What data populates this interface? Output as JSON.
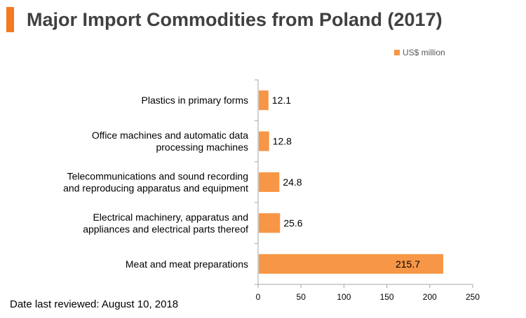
{
  "title": "Major Import Commodities from Poland (2017)",
  "footnote": "Date last reviewed: August 10, 2018",
  "colors": {
    "accent": "#f47920",
    "bar": "#f79646",
    "axis": "#a6a6a6"
  },
  "chart_data": {
    "type": "bar",
    "orientation": "horizontal",
    "categories": [
      "Plastics in primary forms",
      "Office machines and automatic data processing machines",
      "Telecommunications and sound recording and reproducing apparatus and equipment",
      "Electrical machinery, apparatus and appliances and electrical parts thereof",
      "Meat and meat preparations"
    ],
    "category_lines": [
      [
        "Plastics in primary forms"
      ],
      [
        "Office machines and automatic data",
        "processing machines"
      ],
      [
        "Telecommunications and sound recording",
        "and reproducing apparatus and equipment"
      ],
      [
        "Electrical machinery, apparatus and",
        "appliances and electrical parts thereof"
      ],
      [
        "Meat and meat preparations"
      ]
    ],
    "series": [
      {
        "name": "US$ million",
        "values": [
          12.1,
          12.8,
          24.8,
          25.6,
          215.7
        ]
      }
    ],
    "value_labels": [
      "12.1",
      "12.8",
      "24.8",
      "25.6",
      "215.7"
    ],
    "xlim": [
      0,
      250
    ],
    "xticks": [
      0,
      50,
      100,
      150,
      200,
      250
    ],
    "grid": false,
    "legend_position": "top-right"
  }
}
